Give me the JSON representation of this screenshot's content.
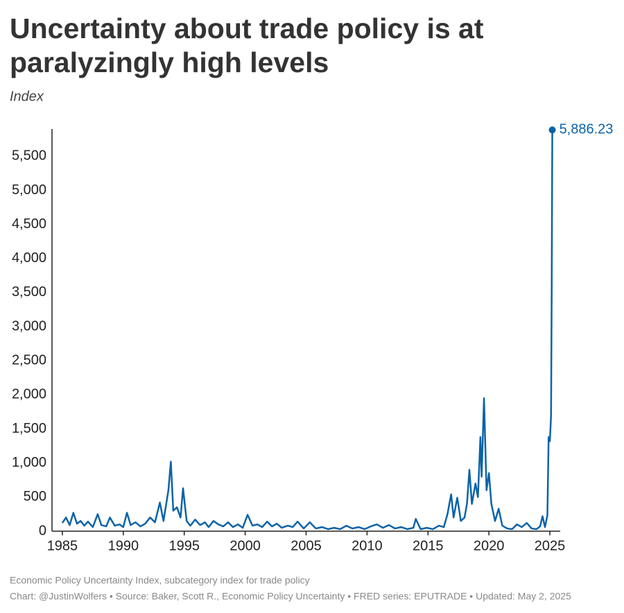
{
  "chart_data": {
    "type": "line",
    "title": [
      "Uncertainty about trade policy is at",
      "paralyzingly high levels"
    ],
    "subtitle": "Index",
    "footer": [
      "Economic Policy Uncertainty Index, subcategory index for trade policy",
      "Chart: @JustinWolfers • Source: Baker, Scott R., Economic Policy Uncertainty • FRED series: EPUTRADE • Updated: May 2, 2025"
    ],
    "color": "#0b63a8",
    "x": [
      1985.0,
      1985.3,
      1985.6,
      1985.9,
      1986.2,
      1986.5,
      1986.8,
      1987.1,
      1987.5,
      1987.9,
      1988.2,
      1988.6,
      1988.9,
      1989.3,
      1989.7,
      1990.0,
      1990.3,
      1990.6,
      1991.0,
      1991.4,
      1991.8,
      1992.2,
      1992.6,
      1993.0,
      1993.3,
      1993.7,
      1993.9,
      1994.1,
      1994.4,
      1994.7,
      1994.9,
      1995.2,
      1995.5,
      1995.9,
      1996.3,
      1996.7,
      1997.0,
      1997.4,
      1997.8,
      1998.2,
      1998.6,
      1999.0,
      1999.4,
      1999.8,
      2000.2,
      2000.6,
      2001.0,
      2001.4,
      2001.8,
      2002.2,
      2002.6,
      2003.0,
      2003.5,
      2003.9,
      2004.3,
      2004.8,
      2005.3,
      2005.8,
      2006.3,
      2006.8,
      2007.3,
      2007.8,
      2008.3,
      2008.8,
      2009.3,
      2009.8,
      2010.3,
      2010.8,
      2011.3,
      2011.8,
      2012.3,
      2012.8,
      2013.3,
      2013.8,
      2014.0,
      2014.4,
      2014.9,
      2015.4,
      2015.9,
      2016.3,
      2016.6,
      2016.9,
      2017.1,
      2017.4,
      2017.7,
      2018.0,
      2018.2,
      2018.4,
      2018.6,
      2018.9,
      2019.1,
      2019.3,
      2019.4,
      2019.6,
      2019.8,
      2020.0,
      2020.2,
      2020.5,
      2020.8,
      2021.1,
      2021.5,
      2021.9,
      2022.3,
      2022.7,
      2023.1,
      2023.5,
      2023.9,
      2024.2,
      2024.4,
      2024.6,
      2024.8,
      2024.9,
      2025.0,
      2025.1,
      2025.15,
      2025.2
    ],
    "values": [
      120,
      200,
      90,
      270,
      110,
      150,
      80,
      140,
      60,
      250,
      90,
      70,
      200,
      80,
      100,
      60,
      270,
      90,
      130,
      70,
      110,
      200,
      130,
      420,
      150,
      600,
      1020,
      300,
      350,
      200,
      630,
      150,
      80,
      170,
      90,
      130,
      60,
      150,
      100,
      70,
      130,
      60,
      100,
      50,
      240,
      80,
      100,
      60,
      140,
      70,
      110,
      50,
      80,
      60,
      140,
      40,
      130,
      40,
      60,
      30,
      50,
      30,
      80,
      40,
      60,
      30,
      70,
      100,
      50,
      90,
      40,
      60,
      30,
      50,
      180,
      30,
      50,
      30,
      80,
      60,
      250,
      540,
      200,
      490,
      150,
      200,
      400,
      900,
      400,
      700,
      500,
      1380,
      800,
      1950,
      600,
      850,
      400,
      150,
      330,
      80,
      40,
      30,
      100,
      60,
      120,
      40,
      30,
      70,
      220,
      60,
      230,
      1380,
      1320,
      1700,
      3500,
      5886.23
    ],
    "value_labels": [
      null,
      null,
      null,
      null,
      null,
      null,
      null,
      null,
      null,
      null,
      null,
      null,
      null,
      null,
      null,
      null,
      null,
      null,
      null,
      null,
      null,
      null,
      null,
      null,
      null,
      null,
      null,
      null,
      null,
      null,
      null,
      null,
      null,
      null,
      null,
      null,
      null,
      null,
      null,
      null,
      null,
      null,
      null,
      null,
      null,
      null,
      null,
      null,
      null,
      null,
      null,
      null,
      null,
      null,
      null,
      null,
      null,
      null,
      null,
      null,
      null,
      null,
      null,
      null,
      null,
      null,
      null,
      null,
      null,
      null,
      null,
      null,
      null,
      null,
      null,
      null,
      null,
      null,
      null,
      null,
      null,
      null,
      null,
      null,
      null,
      null,
      null,
      null,
      null,
      null,
      null,
      null,
      null,
      null,
      null,
      null,
      null,
      null,
      null,
      null,
      null,
      null,
      null,
      null,
      null,
      null,
      null,
      null,
      null,
      null,
      null,
      null,
      null,
      null,
      null,
      "5,886.23"
    ],
    "xlim": [
      1984.15,
      2025.85
    ],
    "xticks": [
      1985,
      1990,
      1995,
      2000,
      2005,
      2010,
      2015,
      2020,
      2025
    ],
    "ylim": [
      0,
      5900
    ],
    "yticks": [
      0,
      500,
      {
        "value": 1000,
        "label": "1,000"
      },
      {
        "value": 1500,
        "label": "1,500"
      },
      {
        "value": 2000,
        "label": "2,000"
      },
      {
        "value": 2500,
        "label": "2,500"
      },
      {
        "value": 3000,
        "label": "3,000"
      },
      {
        "value": 3500,
        "label": "3,500"
      },
      {
        "value": 4000,
        "label": "4,000"
      },
      {
        "value": 4500,
        "label": "4,500"
      },
      {
        "value": 5000,
        "label": "5,000"
      },
      {
        "value": 5500,
        "label": "5,500"
      }
    ]
  }
}
